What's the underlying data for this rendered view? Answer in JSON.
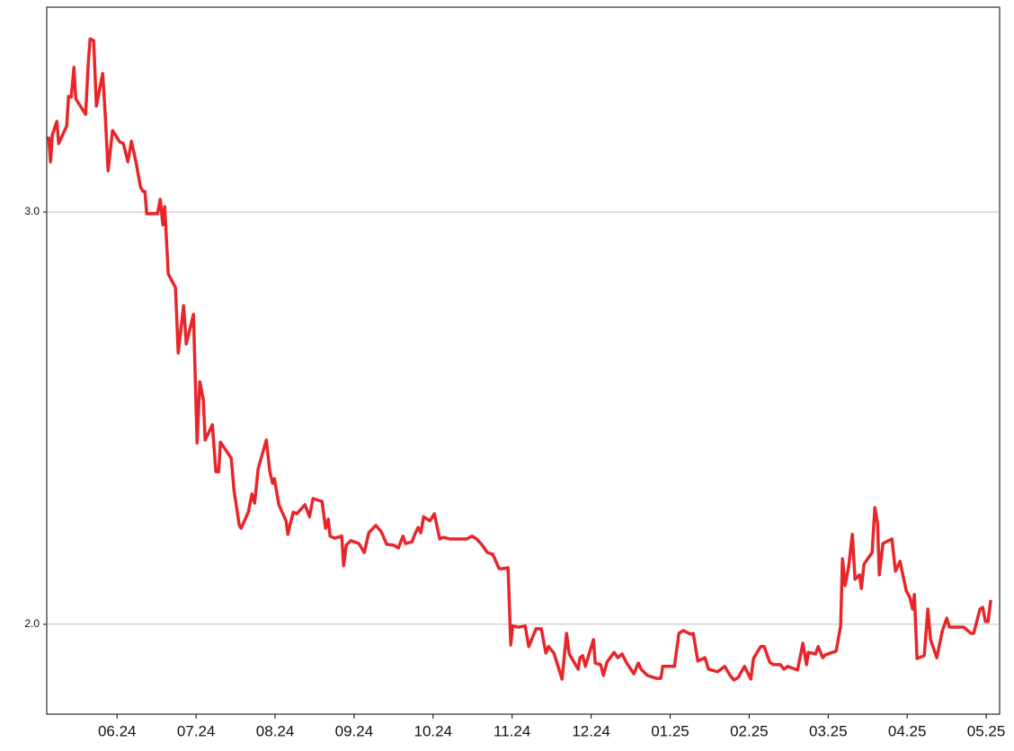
{
  "chart_data": {
    "type": "line",
    "color": "#e8262a",
    "grid": true,
    "xlim": [
      5.11,
      17.17
    ],
    "xticks": [
      {
        "value": 6,
        "label": "06.24"
      },
      {
        "value": 7,
        "label": "07.24"
      },
      {
        "value": 8,
        "label": "08.24"
      },
      {
        "value": 9,
        "label": "09.24"
      },
      {
        "value": 10,
        "label": "10.24"
      },
      {
        "value": 11,
        "label": "11.24"
      },
      {
        "value": 12,
        "label": "12.24"
      },
      {
        "value": 13,
        "label": "01.25"
      },
      {
        "value": 14,
        "label": "02.25"
      },
      {
        "value": 15,
        "label": "03.25"
      },
      {
        "value": 16,
        "label": "04.25"
      },
      {
        "value": 17,
        "label": "05.25"
      }
    ],
    "ylim": [
      1.782,
      3.497
    ],
    "yticks": [
      {
        "value": 2,
        "label": "2.0"
      },
      {
        "value": 3,
        "label": "3.0"
      }
    ],
    "x": [
      5.135,
      5.158,
      5.181,
      5.238,
      5.261,
      5.363,
      5.386,
      5.42,
      5.454,
      5.477,
      5.602,
      5.636,
      5.659,
      5.704,
      5.738,
      5.784,
      5.818,
      5.852,
      5.886,
      5.943,
      6.034,
      6.08,
      6.137,
      6.182,
      6.239,
      6.296,
      6.33,
      6.353,
      6.375,
      6.512,
      6.546,
      6.58,
      6.603,
      6.648,
      6.739,
      6.774,
      6.842,
      6.876,
      6.967,
      7.013,
      7.047,
      7.092,
      7.115,
      7.206,
      7.251,
      7.286,
      7.308,
      7.445,
      7.479,
      7.547,
      7.57,
      7.661,
      7.707,
      7.741,
      7.786,
      7.889,
      7.934,
      7.968,
      7.991,
      8.048,
      8.139,
      8.162,
      8.196,
      8.23,
      8.275,
      8.378,
      8.435,
      8.48,
      8.594,
      8.639,
      8.674,
      8.696,
      8.753,
      8.844,
      8.867,
      8.901,
      8.958,
      9.06,
      9.129,
      9.186,
      9.276,
      9.345,
      9.413,
      9.504,
      9.561,
      9.618,
      9.652,
      9.732,
      9.777,
      9.811,
      9.845,
      9.88,
      9.959,
      10.016,
      10.084,
      10.13,
      10.209,
      10.426,
      10.494,
      10.551,
      10.63,
      10.687,
      10.755,
      10.835,
      10.881,
      10.949,
      10.983,
      11.006,
      11.085,
      11.165,
      11.211,
      11.302,
      11.37,
      11.427,
      11.461,
      11.529,
      11.575,
      11.632,
      11.689,
      11.723,
      11.836,
      11.859,
      11.893,
      11.927,
      12.03,
      12.052,
      12.121,
      12.155,
      12.2,
      12.291,
      12.337,
      12.393,
      12.45,
      12.541,
      12.598,
      12.633,
      12.712,
      12.826,
      12.883,
      12.906,
      13.054,
      13.111,
      13.167,
      13.258,
      13.293,
      13.35,
      13.441,
      13.486,
      13.6,
      13.691,
      13.759,
      13.805,
      13.862,
      13.941,
      13.998,
      14.021,
      14.055,
      14.146,
      14.191,
      14.26,
      14.305,
      14.396,
      14.441,
      14.487,
      14.612,
      14.68,
      14.726,
      14.749,
      14.84,
      14.874,
      14.931,
      14.965,
      15.101,
      15.158,
      15.181,
      15.215,
      15.261,
      15.306,
      15.34,
      15.397,
      15.42,
      15.454,
      15.556,
      15.591,
      15.625,
      15.647,
      15.693,
      15.807,
      15.852,
      15.909,
      15.989,
      16.034,
      16.068,
      16.091,
      16.125,
      16.216,
      16.262,
      16.296,
      16.375,
      16.444,
      16.501,
      16.535,
      16.717,
      16.808,
      16.842,
      16.922,
      16.956,
      16.99,
      17.024,
      17.058
    ],
    "values": [
      3.183,
      3.122,
      3.187,
      3.22,
      3.166,
      3.209,
      3.281,
      3.279,
      3.351,
      3.275,
      3.237,
      3.362,
      3.42,
      3.416,
      3.257,
      3.303,
      3.336,
      3.231,
      3.1,
      3.198,
      3.17,
      3.166,
      3.122,
      3.172,
      3.122,
      3.061,
      3.05,
      3.05,
      2.996,
      2.996,
      3.031,
      2.969,
      3.013,
      2.85,
      2.817,
      2.658,
      2.773,
      2.68,
      2.752,
      2.44,
      2.588,
      2.545,
      2.447,
      2.484,
      2.37,
      2.37,
      2.442,
      2.403,
      2.327,
      2.24,
      2.233,
      2.272,
      2.316,
      2.294,
      2.377,
      2.447,
      2.37,
      2.342,
      2.353,
      2.29,
      2.251,
      2.218,
      2.246,
      2.272,
      2.268,
      2.29,
      2.261,
      2.305,
      2.298,
      2.233,
      2.255,
      2.214,
      2.209,
      2.214,
      2.142,
      2.192,
      2.203,
      2.196,
      2.174,
      2.222,
      2.24,
      2.224,
      2.194,
      2.192,
      2.185,
      2.214,
      2.196,
      2.2,
      2.222,
      2.235,
      2.222,
      2.261,
      2.251,
      2.268,
      2.207,
      2.211,
      2.207,
      2.207,
      2.214,
      2.207,
      2.19,
      2.174,
      2.17,
      2.135,
      2.135,
      2.137,
      1.95,
      1.996,
      1.993,
      1.996,
      1.946,
      1.989,
      1.989,
      1.93,
      1.946,
      1.93,
      1.902,
      1.867,
      1.978,
      1.928,
      1.891,
      1.919,
      1.924,
      1.898,
      1.963,
      1.906,
      1.902,
      1.876,
      1.908,
      1.932,
      1.919,
      1.928,
      1.906,
      1.88,
      1.906,
      1.891,
      1.876,
      1.869,
      1.869,
      1.898,
      1.898,
      1.978,
      1.985,
      1.976,
      1.978,
      1.911,
      1.919,
      1.891,
      1.885,
      1.898,
      1.876,
      1.865,
      1.871,
      1.898,
      1.876,
      1.867,
      1.917,
      1.946,
      1.946,
      1.908,
      1.902,
      1.902,
      1.891,
      1.898,
      1.889,
      1.954,
      1.902,
      1.932,
      1.928,
      1.946,
      1.919,
      1.926,
      1.935,
      1.996,
      2.159,
      2.094,
      2.142,
      2.218,
      2.109,
      2.12,
      2.087,
      2.146,
      2.174,
      2.283,
      2.246,
      2.12,
      2.196,
      2.207,
      2.129,
      2.153,
      2.081,
      2.065,
      2.037,
      2.072,
      1.917,
      1.924,
      2.037,
      1.963,
      1.919,
      1.983,
      2.015,
      1.993,
      1.993,
      1.978,
      1.978,
      2.037,
      2.041,
      2.007,
      2.007,
      2.059
    ]
  }
}
